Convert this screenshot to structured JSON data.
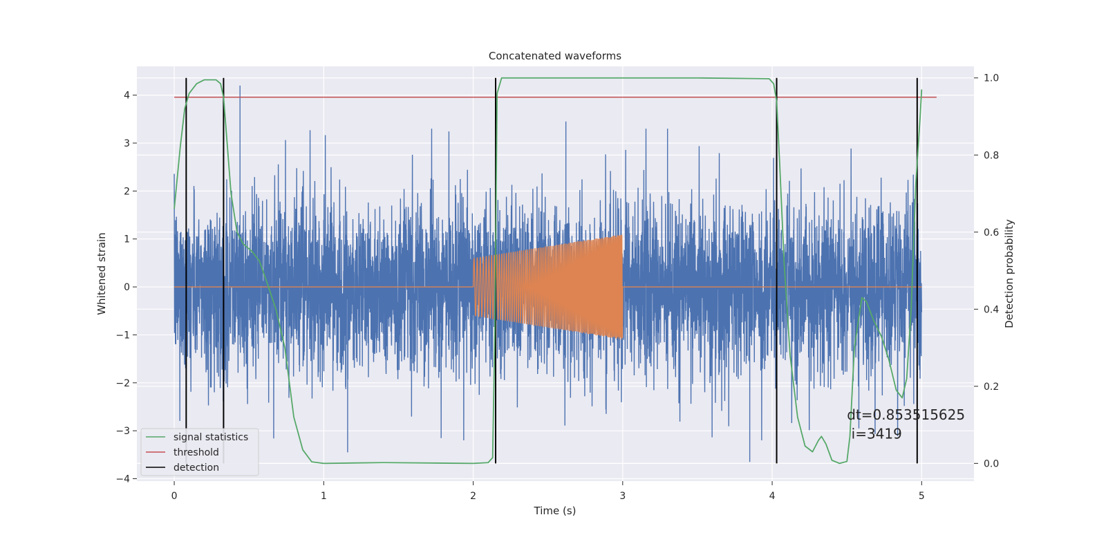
{
  "chart_data": {
    "type": "line",
    "title": "Concatenated waveforms",
    "xlabel": "Time (s)",
    "ylabel": "Whitened strain",
    "y2label": "Detection probability",
    "xlim": [
      -0.25,
      5.35
    ],
    "ylim": [
      -4.05,
      4.6
    ],
    "y2lim": [
      -0.046,
      1.03
    ],
    "x_ticks": [
      0,
      1,
      2,
      3,
      4,
      5
    ],
    "y_ticks": [
      -4,
      -3,
      -2,
      -1,
      0,
      1,
      2,
      3,
      4
    ],
    "y2_ticks": [
      0.0,
      0.2,
      0.4,
      0.6,
      0.8,
      1.0
    ],
    "x_tick_labels": [
      "0",
      "1",
      "2",
      "3",
      "4",
      "5"
    ],
    "y_tick_labels": [
      "−4",
      "−3",
      "−2",
      "−1",
      "0",
      "1",
      "2",
      "3",
      "4"
    ],
    "y2_tick_labels": [
      "0.0",
      "0.2",
      "0.4",
      "0.6",
      "0.8",
      "1.0"
    ],
    "grid": true,
    "legend_placement": "lower-left",
    "series": [
      {
        "name": "",
        "axis": "left",
        "kind": "noise",
        "color": "#4c72b0",
        "x_range": [
          0,
          5
        ],
        "typical_amplitude": 1.5,
        "peaks": [
          [
            0.44,
            4.2
          ],
          [
            2.62,
            3.45
          ],
          [
            3.3,
            3.3
          ],
          [
            3.85,
            -3.65
          ],
          [
            1.16,
            -3.45
          ],
          [
            4.58,
            -2.95
          ]
        ]
      },
      {
        "name": "",
        "axis": "left",
        "kind": "chirp",
        "color": "#dd8452",
        "x_range": [
          0,
          5
        ],
        "chirp_start": 2.0,
        "chirp_end": 3.0,
        "amplitude_start": 0.6,
        "amplitude_end": 1.1
      },
      {
        "name": "signal statistics",
        "axis": "right",
        "color": "#55a868",
        "points": [
          [
            0.0,
            0.66
          ],
          [
            0.01,
            0.7
          ],
          [
            0.04,
            0.82
          ],
          [
            0.07,
            0.92
          ],
          [
            0.1,
            0.96
          ],
          [
            0.15,
            0.985
          ],
          [
            0.2,
            0.995
          ],
          [
            0.28,
            0.995
          ],
          [
            0.31,
            0.985
          ],
          [
            0.33,
            0.95
          ],
          [
            0.35,
            0.85
          ],
          [
            0.38,
            0.7
          ],
          [
            0.42,
            0.6
          ],
          [
            0.46,
            0.57
          ],
          [
            0.52,
            0.55
          ],
          [
            0.57,
            0.525
          ],
          [
            0.62,
            0.47
          ],
          [
            0.68,
            0.4
          ],
          [
            0.74,
            0.3
          ],
          [
            0.8,
            0.12
          ],
          [
            0.86,
            0.035
          ],
          [
            0.92,
            0.004
          ],
          [
            1.0,
            0.0
          ],
          [
            1.4,
            0.002
          ],
          [
            2.0,
            0.0
          ],
          [
            2.1,
            0.002
          ],
          [
            2.13,
            0.015
          ],
          [
            2.145,
            0.35
          ],
          [
            2.16,
            0.96
          ],
          [
            2.19,
            1.0
          ],
          [
            2.5,
            1.0
          ],
          [
            3.5,
            1.0
          ],
          [
            3.98,
            0.998
          ],
          [
            4.01,
            0.985
          ],
          [
            4.03,
            0.94
          ],
          [
            4.05,
            0.78
          ],
          [
            4.08,
            0.52
          ],
          [
            4.12,
            0.28
          ],
          [
            4.17,
            0.12
          ],
          [
            4.22,
            0.045
          ],
          [
            4.27,
            0.03
          ],
          [
            4.31,
            0.06
          ],
          [
            4.33,
            0.07
          ],
          [
            4.36,
            0.05
          ],
          [
            4.4,
            0.008
          ],
          [
            4.45,
            0.0
          ],
          [
            4.5,
            0.005
          ],
          [
            4.52,
            0.07
          ],
          [
            4.55,
            0.3
          ],
          [
            4.6,
            0.43
          ],
          [
            4.63,
            0.42
          ],
          [
            4.68,
            0.37
          ],
          [
            4.73,
            0.33
          ],
          [
            4.78,
            0.27
          ],
          [
            4.83,
            0.19
          ],
          [
            4.87,
            0.17
          ],
          [
            4.9,
            0.22
          ],
          [
            4.93,
            0.4
          ],
          [
            4.96,
            0.72
          ],
          [
            4.99,
            0.9
          ],
          [
            5.0,
            0.97
          ]
        ]
      },
      {
        "name": "threshold",
        "axis": "right",
        "color": "#c44e52",
        "x": [
          0,
          5.1
        ],
        "y": [
          0.95,
          0.95
        ]
      },
      {
        "name": "detection",
        "axis": "right",
        "color": "#000000",
        "x": [
          0.08,
          0.33,
          2.15,
          4.03,
          4.97
        ],
        "y_range": [
          0,
          1
        ]
      }
    ],
    "annotations": [
      {
        "text": "dt=0.853515625",
        "x": 4.5,
        "y": -2.77
      },
      {
        "text": "i=3419",
        "x": 4.53,
        "y": -3.16
      }
    ]
  }
}
